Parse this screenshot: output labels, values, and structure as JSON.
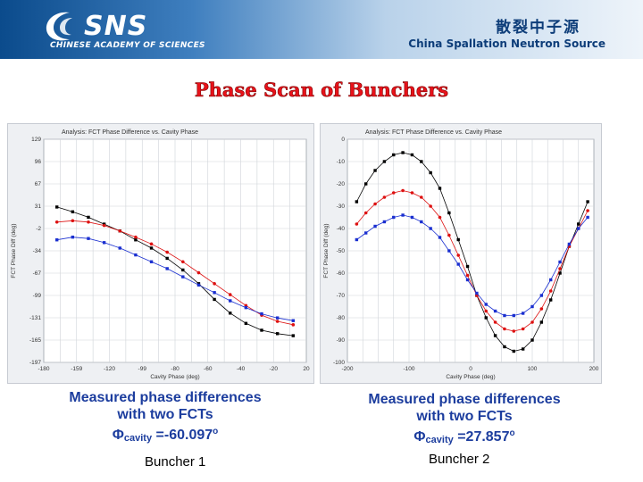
{
  "header": {
    "logo_text": "SNS",
    "logo_sub": "CHINESE ACADEMY OF SCIENCES",
    "org_cn": "散裂中子源",
    "org_en": "China Spallation Neutron Source"
  },
  "title": "Phase Scan of Bunchers",
  "chart_data": [
    {
      "type": "scatter",
      "title": "Analysis: FCT Phase Difference vs. Cavity Phase",
      "xlabel": "Cavity Phase (deg)",
      "ylabel": "FCT Phase Diff (deg)",
      "xlim": [
        -180,
        20
      ],
      "ylim": [
        -197,
        129
      ],
      "x_ticks": [
        "-180",
        "-159",
        "-120",
        "-99",
        "-80",
        "-60",
        "-40",
        "-20",
        "20"
      ],
      "y_ticks": [
        "129",
        "96",
        "67",
        "31",
        "-2",
        "-34",
        "-67",
        "-99",
        "-131",
        "-165",
        "-197"
      ],
      "grid": true,
      "series": [
        {
          "color": "#000000",
          "marker": "square",
          "x": [
            -170,
            -158,
            -146,
            -134,
            -122,
            -110,
            -98,
            -86,
            -74,
            -62,
            -50,
            -38,
            -26,
            -14,
            -2,
            10
          ],
          "y": [
            30,
            23,
            15,
            5,
            -5,
            -18,
            -30,
            -45,
            -62,
            -82,
            -105,
            -125,
            -140,
            -150,
            -155,
            -158
          ]
        },
        {
          "color": "#dd1111",
          "marker": "circle",
          "x": [
            -170,
            -158,
            -146,
            -134,
            -122,
            -110,
            -98,
            -86,
            -74,
            -62,
            -50,
            -38,
            -26,
            -14,
            -2,
            10
          ],
          "y": [
            8,
            10,
            8,
            3,
            -5,
            -14,
            -24,
            -36,
            -50,
            -66,
            -82,
            -98,
            -114,
            -128,
            -137,
            -142
          ]
        },
        {
          "color": "#1a2fd0",
          "marker": "square",
          "x": [
            -170,
            -158,
            -146,
            -134,
            -122,
            -110,
            -98,
            -86,
            -74,
            -62,
            -50,
            -38,
            -26,
            -14,
            -2,
            10
          ],
          "y": [
            -18,
            -14,
            -16,
            -22,
            -30,
            -40,
            -50,
            -60,
            -72,
            -84,
            -95,
            -107,
            -117,
            -126,
            -132,
            -136
          ]
        }
      ]
    },
    {
      "type": "scatter",
      "title": "Analysis: FCT Phase Difference vs. Cavity Phase",
      "xlabel": "Cavity Phase (deg)",
      "ylabel": "FCT Phase Diff (deg)",
      "xlim": [
        -200,
        200
      ],
      "ylim": [
        -100,
        0
      ],
      "x_ticks": [
        "-200",
        "-100",
        "0",
        "100",
        "200"
      ],
      "y_ticks": [
        "0",
        "-10",
        "-20",
        "-30",
        "-40",
        "-50",
        "-60",
        "-70",
        "-80",
        "-90",
        "-100"
      ],
      "grid": true,
      "series": [
        {
          "color": "#000000",
          "marker": "square",
          "x": [
            -185,
            -170,
            -155,
            -140,
            -125,
            -110,
            -95,
            -80,
            -65,
            -50,
            -35,
            -20,
            -5,
            10,
            25,
            40,
            55,
            70,
            85,
            100,
            115,
            130,
            145,
            160,
            175,
            190
          ],
          "y": [
            -28,
            -20,
            -14,
            -10,
            -7,
            -6,
            -7,
            -10,
            -15,
            -22,
            -33,
            -45,
            -57,
            -70,
            -80,
            -88,
            -93,
            -95,
            -94,
            -90,
            -82,
            -72,
            -60,
            -48,
            -38,
            -28
          ]
        },
        {
          "color": "#dd1111",
          "marker": "circle",
          "x": [
            -185,
            -170,
            -155,
            -140,
            -125,
            -110,
            -95,
            -80,
            -65,
            -50,
            -35,
            -20,
            -5,
            10,
            25,
            40,
            55,
            70,
            85,
            100,
            115,
            130,
            145,
            160,
            175,
            190
          ],
          "y": [
            -38,
            -33,
            -29,
            -26,
            -24,
            -23,
            -24,
            -26,
            -30,
            -35,
            -43,
            -52,
            -61,
            -70,
            -77,
            -82,
            -85,
            -86,
            -85,
            -82,
            -76,
            -68,
            -58,
            -48,
            -40,
            -32
          ]
        },
        {
          "color": "#1a2fd0",
          "marker": "square",
          "x": [
            -185,
            -170,
            -155,
            -140,
            -125,
            -110,
            -95,
            -80,
            -65,
            -50,
            -35,
            -20,
            -5,
            10,
            25,
            40,
            55,
            70,
            85,
            100,
            115,
            130,
            145,
            160,
            175,
            190
          ],
          "y": [
            -45,
            -42,
            -39,
            -37,
            -35,
            -34,
            -35,
            -37,
            -40,
            -44,
            -50,
            -56,
            -63,
            -69,
            -74,
            -77,
            -79,
            -79,
            -78,
            -75,
            -70,
            -63,
            -55,
            -47,
            -40,
            -35
          ]
        }
      ]
    }
  ],
  "captions": [
    {
      "line1": "Measured phase differences",
      "line2": "with two FCTs",
      "phi_symbol": "Φ",
      "phi_sub": "cavity",
      "phi_value": " =-60.097",
      "phi_sup": "o",
      "buncher": "Buncher 1"
    },
    {
      "line1": "Measured phase differences",
      "line2": "with two FCTs",
      "phi_symbol": "Φ",
      "phi_sub": "cavity",
      "phi_value": " =27.857",
      "phi_sup": "o",
      "buncher": "Buncher 2"
    }
  ]
}
